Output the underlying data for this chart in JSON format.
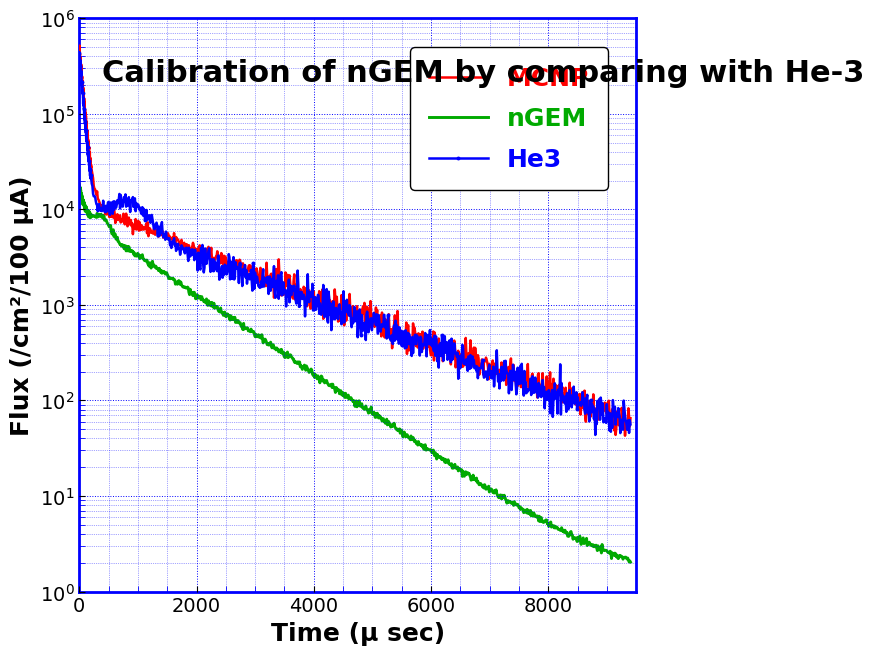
{
  "title": "Calibration of nGEM by comparing with He-3",
  "xlabel": "Time (μ sec)",
  "ylabel": "Flux (/cm²/100 μA)",
  "xlim": [
    0,
    9500
  ],
  "ylim": [
    1,
    1000000.0
  ],
  "grid_color": "#0000ff",
  "bg_color": "#ffffff",
  "legend": {
    "MCNP": "#ff0000",
    "nGEM": "#00aa00",
    "He3": "#0000ff"
  },
  "title_fontsize": 22,
  "label_fontsize": 18,
  "tick_fontsize": 14
}
